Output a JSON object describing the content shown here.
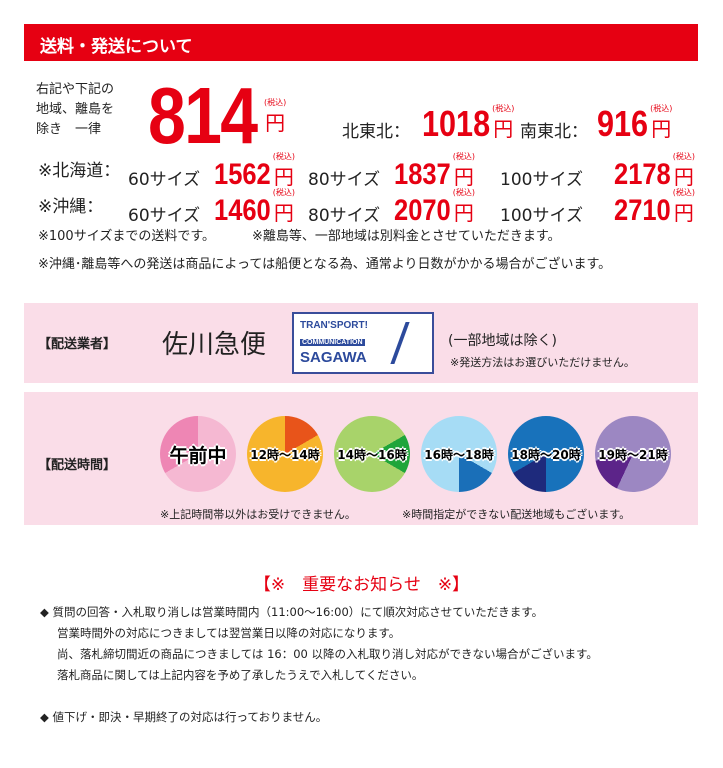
{
  "header": {
    "title": "送料・発送について"
  },
  "pricing": {
    "lead_lines": [
      "右記や下記の",
      "地域、離島を",
      "除き　一律"
    ],
    "base_price": "814",
    "yen": "円",
    "tax_label": "(税込)",
    "tohoku_north": {
      "label": "北東北：",
      "price": "1018"
    },
    "tohoku_south": {
      "label": "南東北：",
      "price": "916"
    },
    "hokkaido": {
      "label": "※北海道：",
      "sizes": [
        {
          "size": "60サイズ",
          "price": "1562"
        },
        {
          "size": "80サイズ",
          "price": "1837"
        },
        {
          "size": "100サイズ",
          "price": "2178"
        }
      ]
    },
    "okinawa": {
      "label": "※沖縄：",
      "sizes": [
        {
          "size": "60サイズ",
          "price": "1460"
        },
        {
          "size": "80サイズ",
          "price": "2070"
        },
        {
          "size": "100サイズ",
          "price": "2710"
        }
      ]
    },
    "note1": "※100サイズまでの送料です。",
    "note2": "※離島等、一部地域は別料金とさせていただきます。",
    "note3": "※沖縄･離島等への発送は商品によっては船便となる為、通常より日数がかかる場合がございます。"
  },
  "carrier": {
    "label": "【配送業者】",
    "name": "佐川急便",
    "logo_lines": [
      "TRAN'SPORT!",
      "COMMUNICATION",
      "SAGAWA"
    ],
    "exception": "(一部地域は除く)",
    "note": "※発送方法はお選びいただけません。"
  },
  "delivery_time": {
    "label": "【配送時間】",
    "slots": [
      {
        "label": "午前中",
        "base": "#f5b8d2",
        "accent": "#ee86b4"
      },
      {
        "label": "12時～14時",
        "base": "#f7b52c",
        "accent": "#e8541a"
      },
      {
        "label": "14時～16時",
        "base": "#a8d36a",
        "accent": "#1fa53a"
      },
      {
        "label": "16時～18時",
        "base": "#a6dcf5",
        "accent": "#1a6fb8"
      },
      {
        "label": "18時～20時",
        "base": "#1872bb",
        "accent": "#1e2a7c"
      },
      {
        "label": "19時～21時",
        "base": "#9c87c2",
        "accent": "#5c2489"
      }
    ],
    "note1": "※上記時間帯以外はお受けできません。",
    "note2": "※時間指定ができない配送地域もございます。"
  },
  "notice": {
    "title": "【※　重要なお知らせ　※】",
    "lines": [
      "◆ 質問の回答・入札取り消しは営業時間内（11:00～16:00）にて順次対応させていただきます。",
      "営業時間外の対応につきましては翌営業日以降の対応になります。",
      "尚、落札締切間近の商品につきましては 16：00 以降の入札取り消し対応ができない場合がございます。",
      "落札商品に関しては上記内容を予め了承したうえで入札してください。",
      "◆ 値下げ・即決・早期終了の対応は行っておりません。"
    ]
  }
}
